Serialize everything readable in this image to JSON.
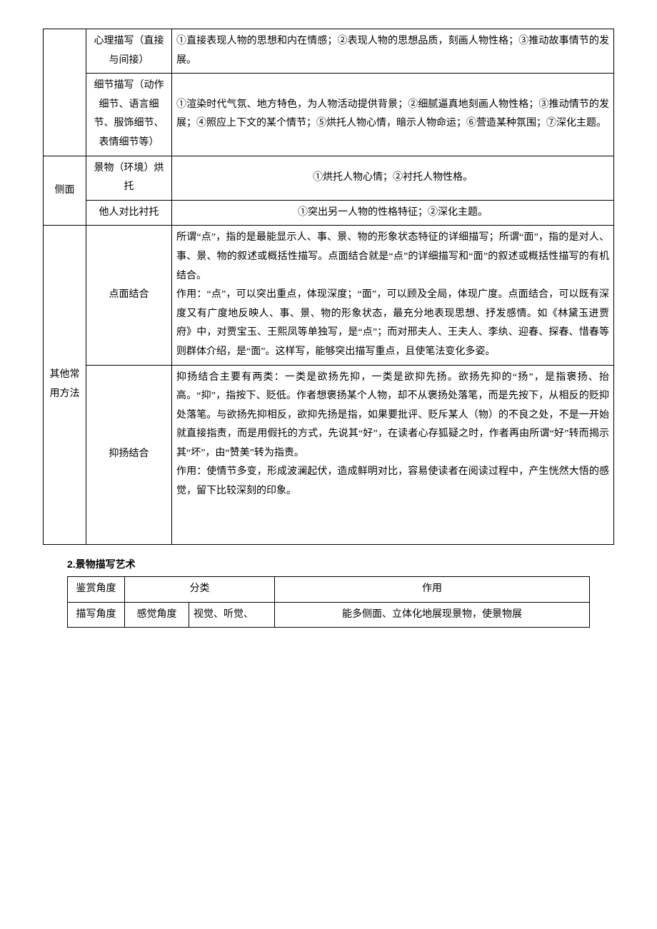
{
  "table1": {
    "rows": [
      {
        "col1": "",
        "col1_rowspan": 2,
        "col1_show": true,
        "col2": "心理描写（直接与间接）",
        "col3": "①直接表现人物的思想和内在情感；②表现人物的思想品质，刻画人物性格；③推动故事情节的发展。",
        "col3_center": false,
        "dashed": false
      },
      {
        "col1_show": false,
        "col2": "细节描写（动作细节、语言细节、服饰细节、表情细节等）",
        "col3": "①渲染时代气氛、地方特色，为人物活动提供背景；②细腻逼真地刻画人物性格；③推动情节的发展；④照应上下文的某个情节；⑤烘托人物心情，暗示人物命运；⑥营造某种氛围；⑦深化主题。",
        "col3_center": false,
        "dashed": true
      },
      {
        "col1": "侧面",
        "col1_rowspan": 2,
        "col1_show": true,
        "col2": "景物（环境）烘托",
        "col3": "①烘托人物心情；②衬托人物性格。",
        "col3_center": true,
        "dashed": false
      },
      {
        "col1_show": false,
        "col2": "他人对比衬托",
        "col3": "①突出另一人物的性格特征；②深化主题。",
        "col3_center": true,
        "dashed": true
      },
      {
        "col1": "其他常用方法",
        "col1_rowspan": 2,
        "col1_show": true,
        "col2": "点面结合",
        "col3": "所谓“点”，指的是最能显示人、事、景、物的形象状态特征的详细描写；所谓“面”，指的是对人、事、景、物的叙述或概括性描写。点面结合就是“点”的详细描写和“面”的叙述或概括性描写的有机结合。\n作用：“点”，可以突出重点，体现深度；“面”，可以顾及全局，体现广度。点面结合，可以既有深度又有广度地反映人、事、景、物的形象状态，最充分地表现思想、抒发感情。如《林黛玉进贾府》中，对贾宝玉、王熙凤等单独写，是“点”；而对邢夫人、王夫人、李纨、迎春、探春、惜春等则群体介绍，是“面”。这样写，能够突出描写重点，且使笔法变化多姿。",
        "col3_center": false,
        "dashed": false
      },
      {
        "col1_show": false,
        "col2": "抑扬结合",
        "col3": "抑扬结合主要有两类：一类是欲扬先抑，一类是欲抑先扬。欲扬先抑的“扬”，是指褒扬、抬高。“抑”，指按下、贬低。作者想褒扬某个人物，却不从褒扬处落笔，而是先按下，从相反的贬抑处落笔。与欲扬先抑相反，欲抑先扬是指，如果要批评、贬斥某人（物）的不良之处，不是一开始就直接指责，而是用假托的方式，先说其“好”，在读者心存狐疑之时，作者再由所谓“好”转而揭示其“坏”，由“赞美”转为指责。\n作用：使情节多变，形成波澜起伏，造成鲜明对比，容易使读者在阅读过程中，产生恍然大悟的感觉，留下比较深刻的印象。",
        "col3_center": false,
        "dashed": false,
        "extra_pad": true
      }
    ]
  },
  "section2_title": "2.景物描写艺术",
  "table2": {
    "header": [
      "鉴赏角度",
      "分类",
      "",
      "作用"
    ],
    "row": [
      "描写角度",
      "感觉角度",
      "视觉、听觉、",
      "能多侧面、立体化地展现景物，使景物展"
    ]
  }
}
